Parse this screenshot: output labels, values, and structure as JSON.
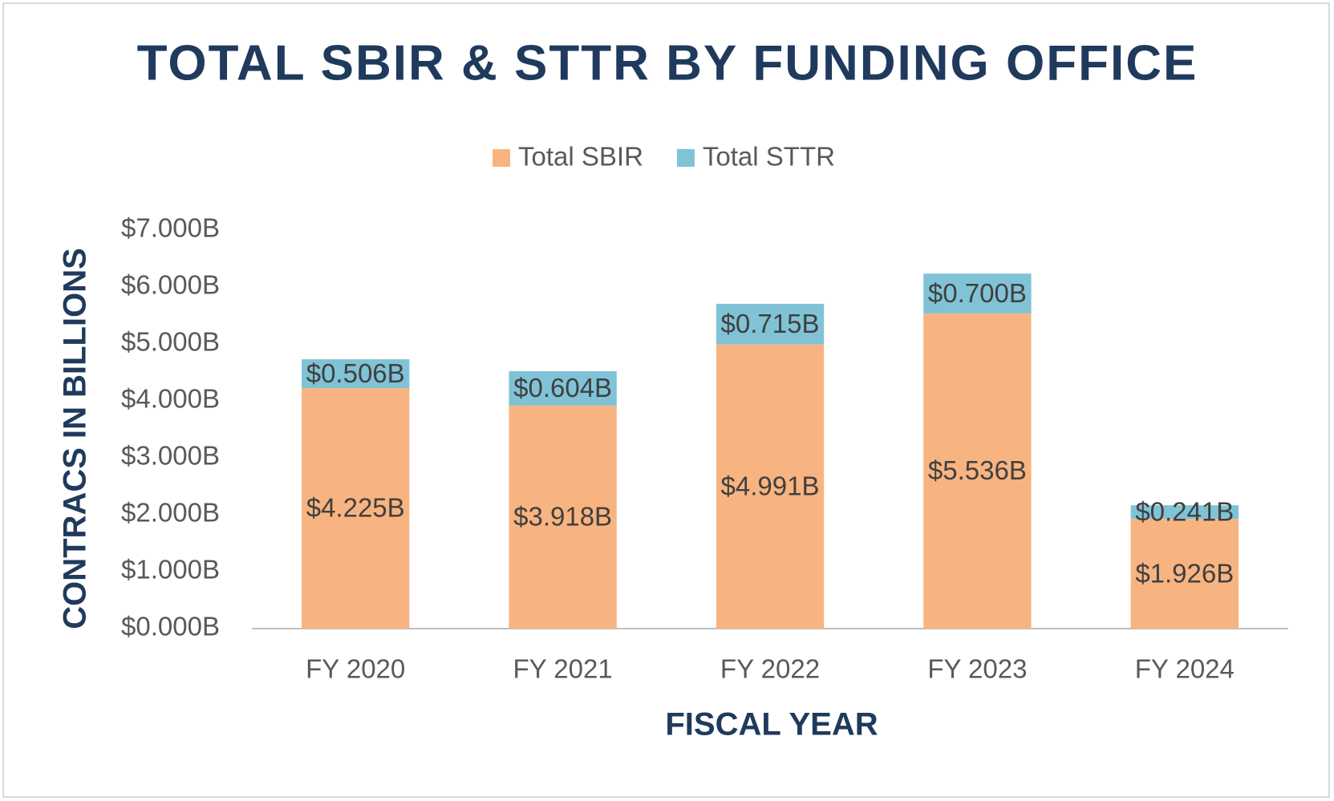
{
  "chart_data": {
    "type": "stacked_bar",
    "title": "TOTAL SBIR & STTR BY FUNDING OFFICE",
    "x_label": "FISCAL YEAR",
    "y_label": "CONTRACS IN BILLIONS",
    "categories": [
      "FY 2020",
      "FY 2021",
      "FY 2022",
      "FY 2023",
      "FY 2024"
    ],
    "series": [
      {
        "name": "Total SBIR",
        "color": "#f8b480",
        "values": [
          4.225,
          3.918,
          4.991,
          5.536,
          1.926
        ],
        "value_labels": [
          "$4.225B",
          "$3.918B",
          "$4.991B",
          "$5.536B",
          "$1.926B"
        ]
      },
      {
        "name": "Total STTR",
        "color": "#80c3d6",
        "values": [
          0.506,
          0.604,
          0.715,
          0.7,
          0.241
        ],
        "value_labels": [
          "$0.506B",
          "$0.604B",
          "$0.715B",
          "$0.700B",
          "$0.241B"
        ]
      }
    ],
    "ylim": [
      0,
      7
    ],
    "yticks": [
      {
        "value": 0,
        "label": "$0.000B"
      },
      {
        "value": 1,
        "label": "$1.000B"
      },
      {
        "value": 2,
        "label": "$2.000B"
      },
      {
        "value": 3,
        "label": "$3.000B"
      },
      {
        "value": 4,
        "label": "$4.000B"
      },
      {
        "value": 5,
        "label": "$5.000B"
      },
      {
        "value": 6,
        "label": "$6.000B"
      },
      {
        "value": 7,
        "label": "$7.000B"
      }
    ],
    "legend": "top",
    "grid": false
  }
}
